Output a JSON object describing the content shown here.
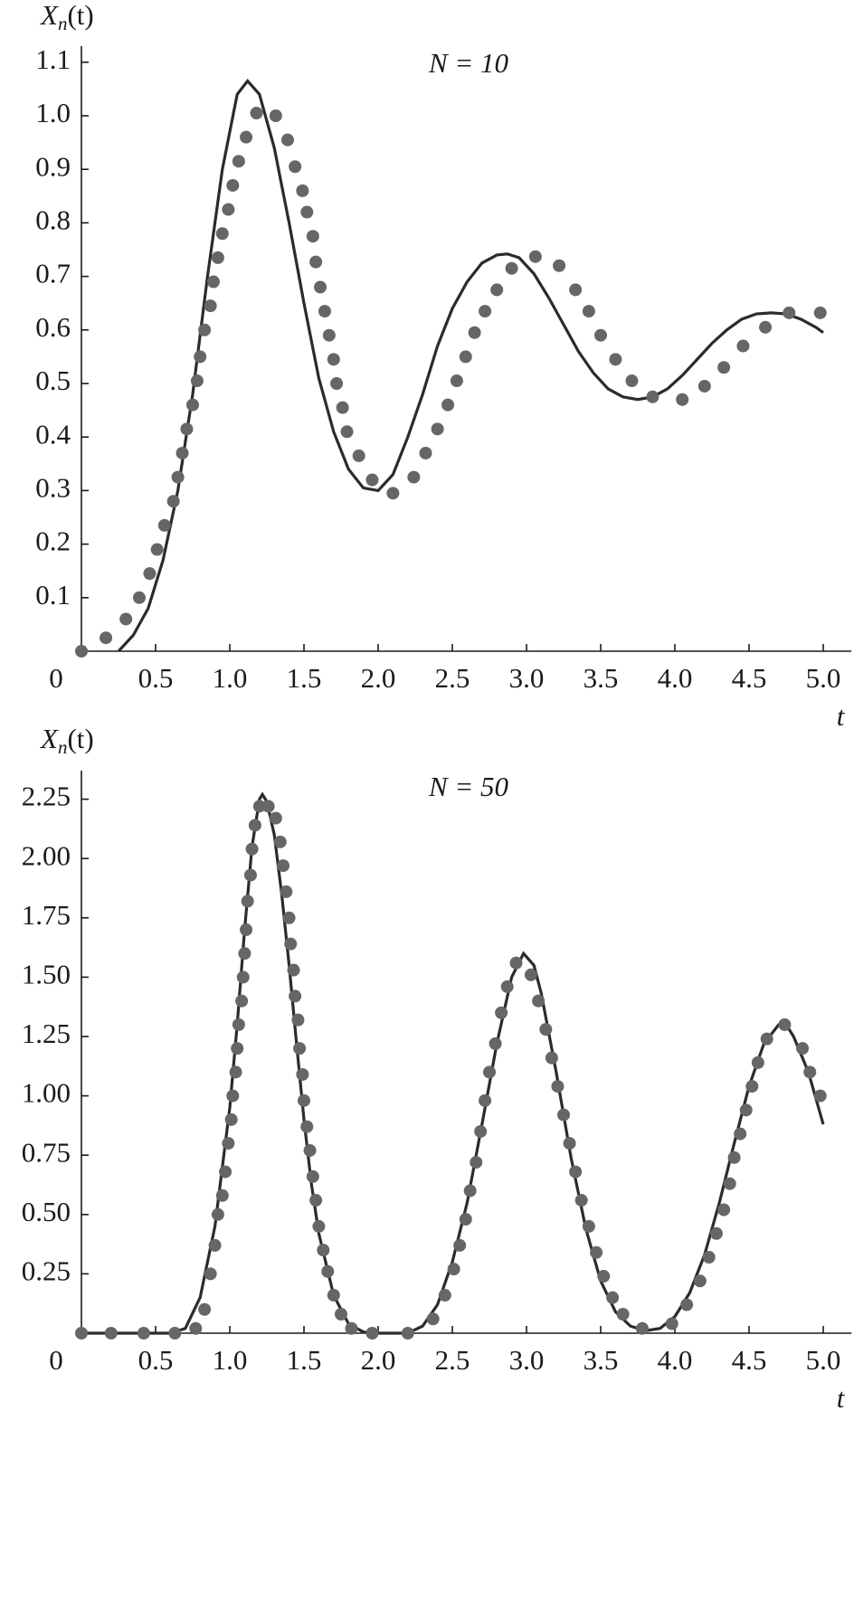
{
  "chart_data": [
    {
      "type": "line",
      "ylabel": {
        "main": "X",
        "sub": "n",
        "rest": "(t)"
      },
      "xlabel": "t",
      "annotation": "N = 10",
      "xlim": [
        0,
        5.19
      ],
      "ylim": [
        0,
        1.13
      ],
      "xticks": [
        0,
        0.5,
        {
          "value": 1,
          "label": "1.0"
        },
        1.5,
        {
          "value": 2,
          "label": "2.0"
        },
        2.5,
        {
          "value": 3,
          "label": "3.0"
        },
        3.5,
        {
          "value": 4,
          "label": "4.0"
        },
        4.5,
        {
          "value": 5,
          "label": "5.0"
        }
      ],
      "yticks": [
        0.1,
        0.2,
        0.3,
        0.4,
        0.5,
        0.6,
        0.7,
        0.8,
        0.9,
        {
          "value": 1,
          "label": "1.0"
        },
        1.1
      ],
      "series": [
        {
          "type": "line",
          "color": "#2b2b2b",
          "x": [
            0.25,
            0.35,
            0.45,
            0.55,
            0.65,
            0.75,
            0.85,
            0.95,
            1.05,
            1.12,
            1.2,
            1.3,
            1.4,
            1.5,
            1.6,
            1.7,
            1.8,
            1.9,
            2.0,
            2.1,
            2.2,
            2.3,
            2.4,
            2.5,
            2.6,
            2.7,
            2.8,
            2.87,
            2.95,
            3.05,
            3.15,
            3.25,
            3.35,
            3.45,
            3.55,
            3.65,
            3.75,
            3.85,
            3.95,
            4.05,
            4.15,
            4.25,
            4.35,
            4.45,
            4.55,
            4.65,
            4.75,
            4.85,
            4.95,
            5.0
          ],
          "values": [
            0,
            0.03,
            0.08,
            0.17,
            0.3,
            0.48,
            0.7,
            0.9,
            1.04,
            1.065,
            1.04,
            0.94,
            0.8,
            0.65,
            0.51,
            0.41,
            0.34,
            0.305,
            0.3,
            0.33,
            0.4,
            0.48,
            0.57,
            0.64,
            0.69,
            0.725,
            0.74,
            0.742,
            0.735,
            0.705,
            0.66,
            0.61,
            0.56,
            0.52,
            0.49,
            0.475,
            0.47,
            0.475,
            0.49,
            0.515,
            0.545,
            0.575,
            0.6,
            0.62,
            0.63,
            0.632,
            0.63,
            0.62,
            0.605,
            0.595
          ]
        },
        {
          "type": "scatter",
          "color": "#666666",
          "x": [
            0,
            0.165,
            0.3,
            0.39,
            0.46,
            0.51,
            0.56,
            0.62,
            0.65,
            0.68,
            0.71,
            0.75,
            0.78,
            0.8,
            0.83,
            0.87,
            0.89,
            0.92,
            0.95,
            0.99,
            1.02,
            1.06,
            1.11,
            1.18,
            1.31,
            1.39,
            1.44,
            1.49,
            1.52,
            1.56,
            1.58,
            1.61,
            1.64,
            1.67,
            1.7,
            1.72,
            1.76,
            1.79,
            1.87,
            1.96,
            2.1,
            2.24,
            2.32,
            2.4,
            2.47,
            2.53,
            2.59,
            2.65,
            2.72,
            2.8,
            2.9,
            3.06,
            3.22,
            3.33,
            3.42,
            3.5,
            3.6,
            3.71,
            3.85,
            4.05,
            4.2,
            4.33,
            4.46,
            4.61,
            4.77,
            4.98
          ],
          "values": [
            0,
            0.025,
            0.06,
            0.1,
            0.145,
            0.19,
            0.235,
            0.28,
            0.325,
            0.37,
            0.415,
            0.46,
            0.505,
            0.55,
            0.6,
            0.645,
            0.69,
            0.735,
            0.78,
            0.825,
            0.87,
            0.915,
            0.96,
            1.005,
            1.0,
            0.955,
            0.905,
            0.86,
            0.82,
            0.775,
            0.727,
            0.68,
            0.635,
            0.59,
            0.545,
            0.5,
            0.455,
            0.41,
            0.365,
            0.32,
            0.295,
            0.325,
            0.37,
            0.415,
            0.46,
            0.505,
            0.55,
            0.595,
            0.635,
            0.675,
            0.715,
            0.737,
            0.72,
            0.675,
            0.635,
            0.59,
            0.545,
            0.505,
            0.475,
            0.47,
            0.495,
            0.53,
            0.57,
            0.605,
            0.632,
            0.632
          ]
        }
      ]
    },
    {
      "type": "line",
      "ylabel": {
        "main": "X",
        "sub": "n",
        "rest": "(t)"
      },
      "xlabel": "t",
      "annotation": "N = 50",
      "xlim": [
        0,
        5.19
      ],
      "ylim": [
        0,
        2.37
      ],
      "xticks": [
        0,
        0.5,
        {
          "value": 1,
          "label": "1.0"
        },
        1.5,
        {
          "value": 2,
          "label": "2.0"
        },
        2.5,
        {
          "value": 3,
          "label": "3.0"
        },
        3.5,
        {
          "value": 4,
          "label": "4.0"
        },
        4.5,
        {
          "value": 5,
          "label": "5.0"
        }
      ],
      "yticks": [
        0.25,
        {
          "value": 0.5,
          "label": "0.50"
        },
        0.75,
        {
          "value": 1,
          "label": "1.00"
        },
        1.25,
        {
          "value": 1.5,
          "label": "1.50"
        },
        1.75,
        {
          "value": 2,
          "label": "2.00"
        },
        2.25
      ],
      "series": [
        {
          "type": "line",
          "color": "#2b2b2b",
          "x": [
            0,
            0.6,
            0.7,
            0.8,
            0.9,
            1.0,
            1.05,
            1.1,
            1.15,
            1.2,
            1.22,
            1.25,
            1.3,
            1.35,
            1.4,
            1.45,
            1.5,
            1.55,
            1.6,
            1.7,
            1.8,
            1.9,
            2.0,
            2.2,
            2.3,
            2.4,
            2.5,
            2.6,
            2.7,
            2.8,
            2.9,
            2.98,
            3.05,
            3.1,
            3.2,
            3.3,
            3.4,
            3.5,
            3.6,
            3.7,
            3.8,
            3.9,
            4.0,
            4.1,
            4.2,
            4.3,
            4.4,
            4.5,
            4.6,
            4.7,
            4.75,
            4.8,
            4.9,
            5.0
          ],
          "values": [
            0,
            0,
            0.02,
            0.15,
            0.45,
            0.95,
            1.3,
            1.7,
            2.05,
            2.25,
            2.27,
            2.24,
            2.1,
            1.85,
            1.55,
            1.22,
            0.9,
            0.63,
            0.42,
            0.16,
            0.04,
            0.005,
            0,
            0,
            0.03,
            0.12,
            0.3,
            0.55,
            0.88,
            1.22,
            1.5,
            1.6,
            1.55,
            1.43,
            1.1,
            0.74,
            0.44,
            0.22,
            0.09,
            0.03,
            0.01,
            0.02,
            0.07,
            0.17,
            0.33,
            0.55,
            0.8,
            1.04,
            1.22,
            1.3,
            1.3,
            1.25,
            1.1,
            0.88
          ]
        },
        {
          "type": "scatter",
          "color": "#666666",
          "x": [
            0,
            0.2,
            0.42,
            0.63,
            0.77,
            0.83,
            0.87,
            0.9,
            0.92,
            0.95,
            0.97,
            0.99,
            1.01,
            1.02,
            1.04,
            1.05,
            1.06,
            1.08,
            1.09,
            1.1,
            1.11,
            1.12,
            1.14,
            1.15,
            1.17,
            1.2,
            1.26,
            1.31,
            1.34,
            1.36,
            1.38,
            1.4,
            1.41,
            1.43,
            1.44,
            1.46,
            1.47,
            1.49,
            1.5,
            1.52,
            1.54,
            1.56,
            1.58,
            1.6,
            1.63,
            1.66,
            1.7,
            1.75,
            1.82,
            1.96,
            2.2,
            2.37,
            2.45,
            2.51,
            2.55,
            2.59,
            2.62,
            2.66,
            2.69,
            2.72,
            2.75,
            2.79,
            2.83,
            2.87,
            2.93,
            3.03,
            3.08,
            3.13,
            3.17,
            3.21,
            3.25,
            3.29,
            3.33,
            3.37,
            3.42,
            3.47,
            3.52,
            3.58,
            3.65,
            3.78,
            3.98,
            4.08,
            4.17,
            4.23,
            4.28,
            4.33,
            4.37,
            4.4,
            4.44,
            4.48,
            4.52,
            4.56,
            4.62,
            4.74,
            4.86,
            4.91,
            4.98
          ],
          "values": [
            0,
            0,
            0,
            0,
            0.02,
            0.1,
            0.25,
            0.37,
            0.5,
            0.58,
            0.68,
            0.8,
            0.9,
            1.0,
            1.1,
            1.2,
            1.3,
            1.4,
            1.5,
            1.6,
            1.7,
            1.82,
            1.93,
            2.04,
            2.14,
            2.22,
            2.22,
            2.17,
            2.07,
            1.97,
            1.86,
            1.75,
            1.64,
            1.53,
            1.42,
            1.32,
            1.2,
            1.09,
            0.98,
            0.87,
            0.77,
            0.66,
            0.56,
            0.45,
            0.35,
            0.26,
            0.16,
            0.08,
            0.02,
            0,
            0,
            0.06,
            0.16,
            0.27,
            0.37,
            0.48,
            0.6,
            0.72,
            0.85,
            0.98,
            1.1,
            1.22,
            1.35,
            1.46,
            1.56,
            1.51,
            1.4,
            1.28,
            1.16,
            1.04,
            0.92,
            0.8,
            0.68,
            0.56,
            0.45,
            0.34,
            0.24,
            0.15,
            0.08,
            0.02,
            0.04,
            0.12,
            0.22,
            0.32,
            0.42,
            0.52,
            0.63,
            0.74,
            0.84,
            0.94,
            1.04,
            1.14,
            1.24,
            1.3,
            1.2,
            1.1,
            1.0
          ]
        }
      ]
    }
  ]
}
